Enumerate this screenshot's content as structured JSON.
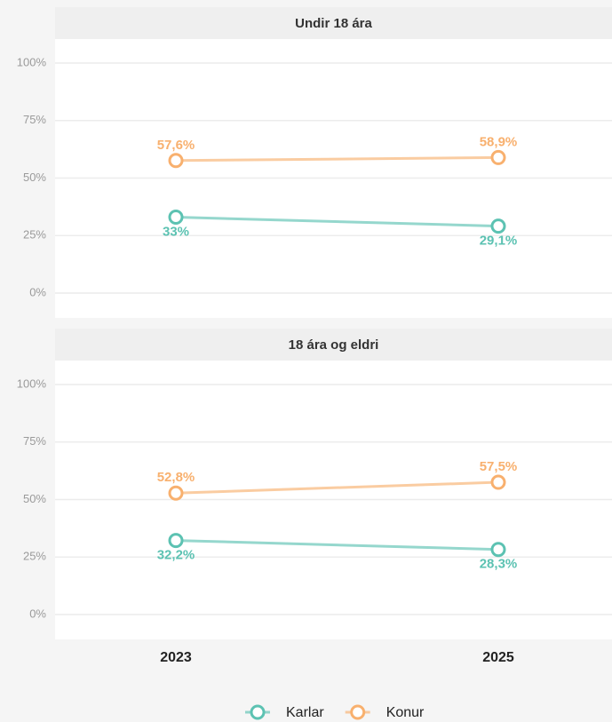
{
  "chart_data": [
    {
      "type": "line",
      "title": "Undir 18 ára",
      "categories": [
        "2023",
        "2025"
      ],
      "series": [
        {
          "name": "Karlar",
          "color": "#5cc2b2",
          "values": [
            33,
            29.1
          ],
          "value_labels": [
            "33%",
            "29,1%"
          ]
        },
        {
          "name": "Konur",
          "color": "#f8b06e",
          "values": [
            57.6,
            58.9
          ],
          "value_labels": [
            "57,6%",
            "58,9%"
          ]
        }
      ],
      "ylim": [
        -10.8,
        110.4
      ],
      "yticks": [
        {
          "value": 0,
          "label": "0%"
        },
        {
          "value": 25,
          "label": "25%"
        },
        {
          "value": 50,
          "label": "50%"
        },
        {
          "value": 75,
          "label": "75%"
        },
        {
          "value": 100,
          "label": "100%"
        }
      ],
      "grid": true
    },
    {
      "type": "line",
      "title": "18 ára og eldri",
      "categories": [
        "2023",
        "2025"
      ],
      "series": [
        {
          "name": "Karlar",
          "color": "#5cc2b2",
          "values": [
            32.2,
            28.3
          ],
          "value_labels": [
            "32,2%",
            "28,3%"
          ]
        },
        {
          "name": "Konur",
          "color": "#f8b06e",
          "values": [
            52.8,
            57.5
          ],
          "value_labels": [
            "52,8%",
            "57,5%"
          ]
        }
      ],
      "ylim": [
        -10.8,
        110.4
      ],
      "yticks": [
        {
          "value": 0,
          "label": "0%"
        },
        {
          "value": 25,
          "label": "25%"
        },
        {
          "value": 50,
          "label": "50%"
        },
        {
          "value": 75,
          "label": "75%"
        },
        {
          "value": 100,
          "label": "100%"
        }
      ],
      "grid": true
    }
  ]
}
